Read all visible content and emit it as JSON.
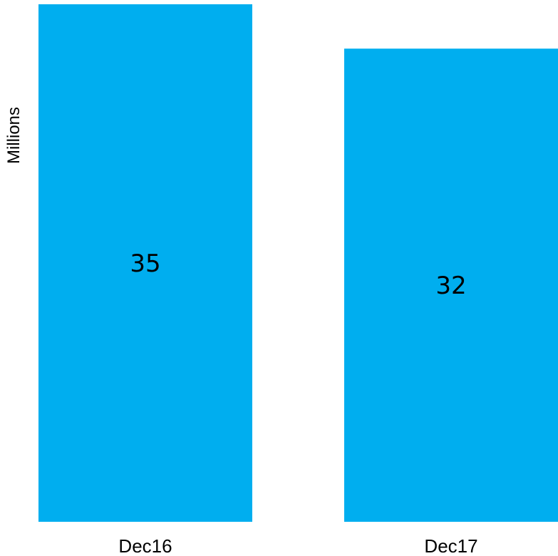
{
  "chart_data": {
    "type": "bar",
    "categories": [
      "Dec16",
      "Dec17"
    ],
    "values": [
      35,
      32
    ],
    "data_labels": [
      "35",
      "32"
    ],
    "title": "",
    "xlabel": "",
    "ylabel": "Millions",
    "ylim": [
      0,
      35
    ],
    "grid": false,
    "legend": "none",
    "bar_color": "#00AEEF"
  }
}
